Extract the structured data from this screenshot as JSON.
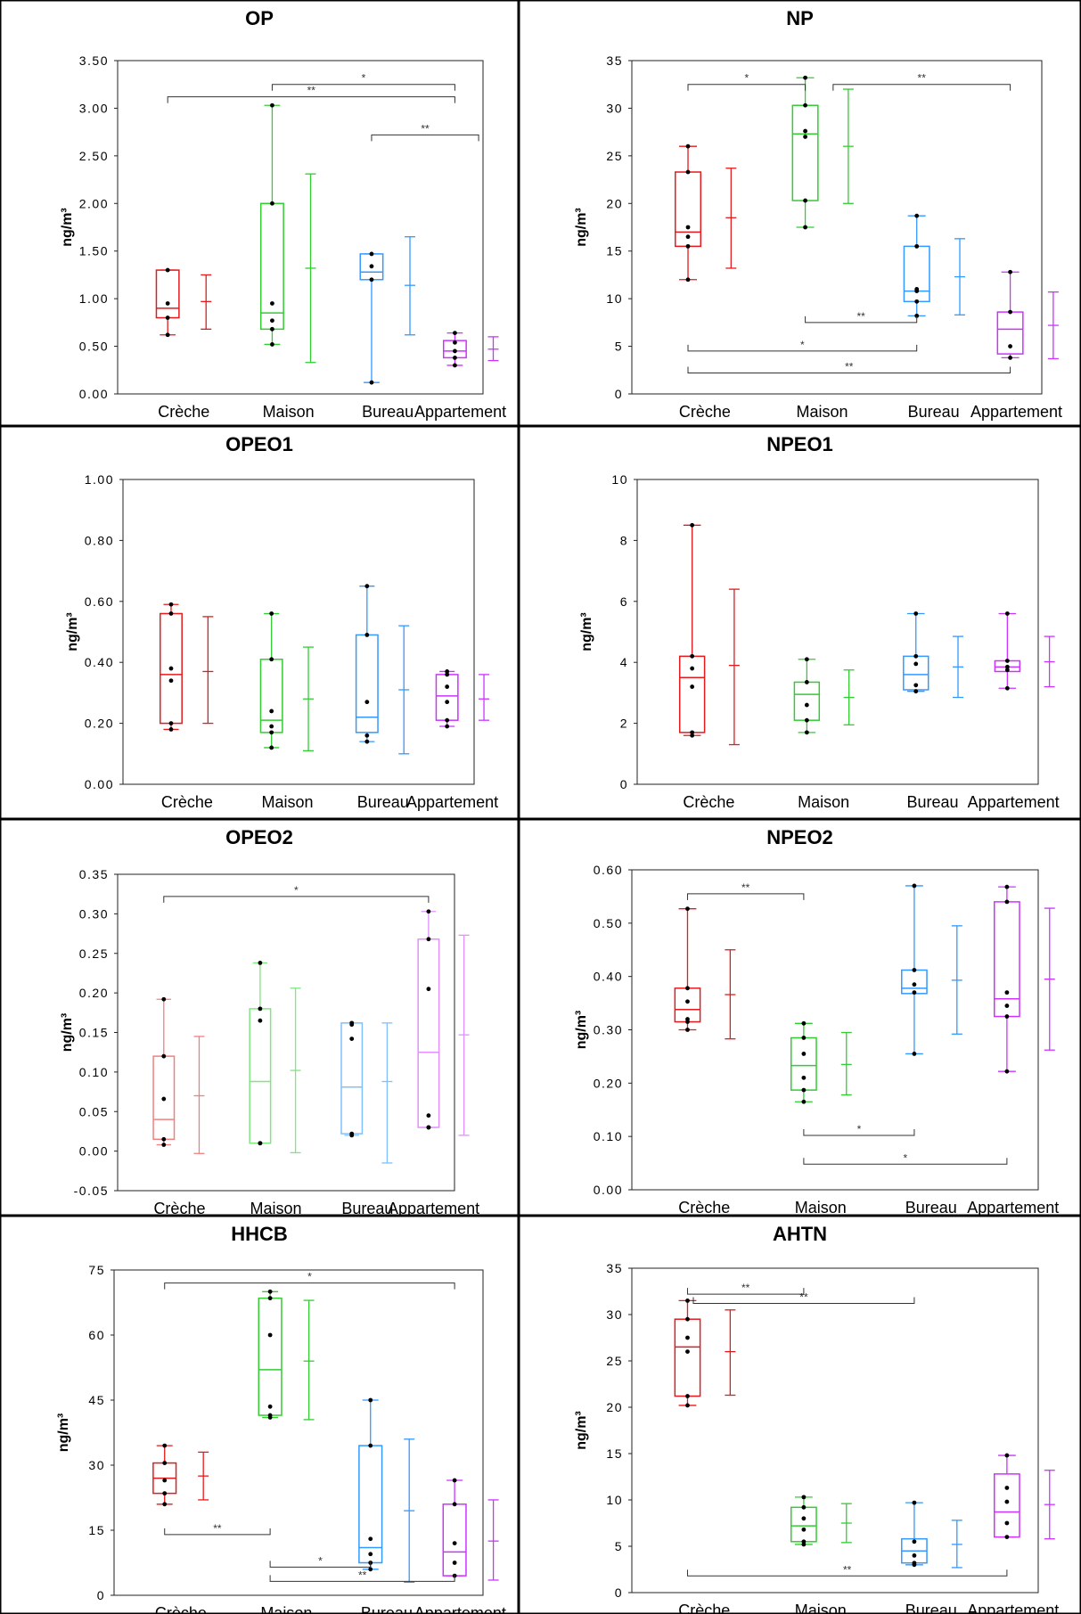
{
  "chart_data": [
    {
      "type": "box",
      "title": "OP",
      "ylabel": "ng/m³",
      "categories": [
        "Crèche",
        "Maison",
        "Bureau",
        "Appartement"
      ],
      "colors": [
        "#e41a1c",
        "#33cc33",
        "#3399ff",
        "#cc33ff"
      ],
      "ylim": [
        0,
        3.5
      ],
      "yticks": [
        0,
        0.5,
        1,
        1.5,
        2,
        2.5,
        3,
        3.5
      ],
      "ytick_labels": [
        "0.00",
        "0.50",
        "1.00",
        "1.50",
        "2.00",
        "2.50",
        "3.00",
        "3.50"
      ],
      "boxes": [
        {
          "min": 0.62,
          "q1": 0.8,
          "median": 0.9,
          "q3": 1.3,
          "max": 1.3,
          "points": [
            0.62,
            0.8,
            0.95,
            1.3
          ],
          "mean": 0.97,
          "mean_low": 0.68,
          "mean_high": 1.25
        },
        {
          "min": 0.52,
          "q1": 0.68,
          "median": 0.85,
          "q3": 2.0,
          "max": 3.03,
          "points": [
            0.52,
            0.68,
            0.77,
            0.95,
            2.0,
            3.03
          ],
          "mean": 1.32,
          "mean_low": 0.33,
          "mean_high": 2.31
        },
        {
          "min": 0.12,
          "q1": 1.2,
          "median": 1.28,
          "q3": 1.47,
          "max": 1.47,
          "points": [
            0.12,
            1.2,
            1.34,
            1.47
          ],
          "mean": 1.14,
          "mean_low": 0.62,
          "mean_high": 1.65
        },
        {
          "min": 0.3,
          "q1": 0.38,
          "median": 0.45,
          "q3": 0.56,
          "max": 0.64,
          "points": [
            0.3,
            0.38,
            0.45,
            0.54,
            0.64
          ],
          "mean": 0.47,
          "mean_low": 0.35,
          "mean_high": 0.6
        }
      ],
      "annotations": [
        {
          "from": 1,
          "to": 3,
          "y": 3.25,
          "label": "*",
          "drop": 1
        },
        {
          "from": 0,
          "to": 3,
          "y": 3.12,
          "label": "**",
          "drop": 1
        },
        {
          "from": 2,
          "to": 3.25,
          "y": 2.72,
          "label": "**",
          "drop": 1
        }
      ]
    },
    {
      "type": "box",
      "title": "NP",
      "ylabel": "ng/m³",
      "categories": [
        "Crèche",
        "Maison",
        "Bureau",
        "Appartement"
      ],
      "colors": [
        "#e41a1c",
        "#33cc33",
        "#3399ff",
        "#cc33ff"
      ],
      "ylim": [
        0,
        35
      ],
      "yticks": [
        0,
        5,
        10,
        15,
        20,
        25,
        30,
        35
      ],
      "ytick_labels": [
        "0",
        "5",
        "10",
        "15",
        "20",
        "25",
        "30",
        "35"
      ],
      "boxes": [
        {
          "min": 12,
          "q1": 15.5,
          "median": 17,
          "q3": 23.3,
          "max": 26,
          "points": [
            12,
            15.5,
            16.5,
            17.5,
            23.3,
            26
          ],
          "mean": 18.5,
          "mean_low": 13.2,
          "mean_high": 23.7
        },
        {
          "min": 17.5,
          "q1": 20.3,
          "median": 27.3,
          "q3": 30.3,
          "max": 33.2,
          "points": [
            17.5,
            20.3,
            27,
            27.6,
            30.3,
            33.2
          ],
          "mean": 26,
          "mean_low": 20,
          "mean_high": 32
        },
        {
          "min": 8.2,
          "q1": 9.7,
          "median": 10.8,
          "q3": 15.5,
          "max": 18.7,
          "points": [
            8.2,
            9.7,
            10.8,
            11,
            15.5,
            18.7
          ],
          "mean": 12.3,
          "mean_low": 8.3,
          "mean_high": 16.3
        },
        {
          "min": 3.8,
          "q1": 4.2,
          "median": 6.8,
          "q3": 8.6,
          "max": 12.8,
          "points": [
            3.8,
            5,
            8.6,
            12.8
          ],
          "mean": 7.2,
          "mean_low": 3.7,
          "mean_high": 10.7
        }
      ],
      "annotations": [
        {
          "from": 0,
          "to": 1,
          "y": 32.5,
          "label": "*",
          "drop": 1
        },
        {
          "from": 1.25,
          "to": 3,
          "y": 32.5,
          "label": "**",
          "drop": 1
        },
        {
          "from": 1,
          "to": 2,
          "y": 7.5,
          "label": "**",
          "drop": -1
        },
        {
          "from": 0,
          "to": 2,
          "y": 4.5,
          "label": "*",
          "drop": -1
        },
        {
          "from": 0,
          "to": 3,
          "y": 2.2,
          "label": "**",
          "drop": -1
        }
      ]
    },
    {
      "type": "box",
      "title": "OPEO1",
      "ylabel": "ng/m³",
      "categories": [
        "Crèche",
        "Maison",
        "Bureau",
        "Appartement"
      ],
      "colors": [
        "#e41a1c",
        "#33cc33",
        "#3399ff",
        "#cc33ff"
      ],
      "ylim": [
        0,
        1
      ],
      "yticks": [
        0,
        0.2,
        0.4,
        0.6,
        0.8,
        1
      ],
      "ytick_labels": [
        "0.00",
        "0.20",
        "0.40",
        "0.60",
        "0.80",
        "1.00"
      ],
      "boxes": [
        {
          "min": 0.18,
          "q1": 0.2,
          "median": 0.36,
          "q3": 0.56,
          "max": 0.59,
          "points": [
            0.18,
            0.2,
            0.34,
            0.38,
            0.56,
            0.59
          ],
          "mean": 0.37,
          "mean_low": 0.2,
          "mean_high": 0.55
        },
        {
          "min": 0.12,
          "q1": 0.17,
          "median": 0.21,
          "q3": 0.41,
          "max": 0.56,
          "points": [
            0.12,
            0.17,
            0.19,
            0.24,
            0.41,
            0.56
          ],
          "mean": 0.28,
          "mean_low": 0.11,
          "mean_high": 0.45
        },
        {
          "min": 0.14,
          "q1": 0.17,
          "median": 0.22,
          "q3": 0.49,
          "max": 0.65,
          "points": [
            0.14,
            0.16,
            0.27,
            0.49,
            0.65
          ],
          "mean": 0.31,
          "mean_low": 0.1,
          "mean_high": 0.52
        },
        {
          "min": 0.19,
          "q1": 0.21,
          "median": 0.29,
          "q3": 0.36,
          "max": 0.37,
          "points": [
            0.19,
            0.21,
            0.27,
            0.32,
            0.36,
            0.37
          ],
          "mean": 0.28,
          "mean_low": 0.21,
          "mean_high": 0.36
        }
      ],
      "annotations": []
    },
    {
      "type": "box",
      "title": "NPEO1",
      "ylabel": "ng/m³",
      "categories": [
        "Crèche",
        "Maison",
        "Bureau",
        "Appartement"
      ],
      "colors": [
        "#e41a1c",
        "#33cc33",
        "#3399ff",
        "#cc33ff"
      ],
      "ylim": [
        0,
        10
      ],
      "yticks": [
        0,
        2,
        4,
        6,
        8,
        10
      ],
      "ytick_labels": [
        "0",
        "2",
        "4",
        "6",
        "8",
        "10"
      ],
      "boxes": [
        {
          "min": 1.6,
          "q1": 1.7,
          "median": 3.5,
          "q3": 4.2,
          "max": 8.5,
          "points": [
            1.6,
            1.7,
            3.2,
            3.8,
            4.2,
            8.5
          ],
          "mean": 3.9,
          "mean_low": 1.3,
          "mean_high": 6.4
        },
        {
          "min": 1.7,
          "q1": 2.1,
          "median": 2.95,
          "q3": 3.35,
          "max": 4.1,
          "points": [
            1.7,
            2.1,
            2.6,
            3.35,
            4.1
          ],
          "mean": 2.85,
          "mean_low": 1.95,
          "mean_high": 3.75
        },
        {
          "min": 3.05,
          "q1": 3.1,
          "median": 3.6,
          "q3": 4.2,
          "max": 5.6,
          "points": [
            3.05,
            3.25,
            3.95,
            4.2,
            5.6
          ],
          "mean": 3.85,
          "mean_low": 2.85,
          "mean_high": 4.85
        },
        {
          "min": 3.15,
          "q1": 3.7,
          "median": 3.85,
          "q3": 4.05,
          "max": 5.6,
          "points": [
            3.15,
            3.75,
            3.85,
            4.05,
            5.6
          ],
          "mean": 4.02,
          "mean_low": 3.2,
          "mean_high": 4.85
        }
      ],
      "annotations": []
    },
    {
      "type": "box",
      "title": "OPEO2",
      "ylabel": "ng/m³",
      "categories": [
        "Crèche",
        "Maison",
        "Bureau",
        "Appartement"
      ],
      "colors": [
        "#f08080",
        "#7de87d",
        "#80c0ff",
        "#e090ff"
      ],
      "ylim": [
        -0.05,
        0.35
      ],
      "yticks": [
        -0.05,
        0,
        0.05,
        0.1,
        0.15,
        0.2,
        0.25,
        0.3,
        0.35
      ],
      "ytick_labels": [
        "-0.05",
        "0.00",
        "0.05",
        "0.10",
        "0.15",
        "0.20",
        "0.25",
        "0.30",
        "0.35"
      ],
      "boxes": [
        {
          "min": 0.008,
          "q1": 0.015,
          "median": 0.04,
          "q3": 0.12,
          "max": 0.192,
          "points": [
            0.008,
            0.015,
            0.066,
            0.12,
            0.192
          ],
          "mean": 0.07,
          "mean_low": -0.003,
          "mean_high": 0.145
        },
        {
          "min": 0.01,
          "q1": 0.01,
          "median": 0.088,
          "q3": 0.18,
          "max": 0.238,
          "points": [
            0.01,
            0.01,
            0.165,
            0.18,
            0.238
          ],
          "mean": 0.102,
          "mean_low": -0.002,
          "mean_high": 0.206
        },
        {
          "min": 0.02,
          "q1": 0.022,
          "median": 0.081,
          "q3": 0.162,
          "max": 0.162,
          "points": [
            0.02,
            0.022,
            0.142,
            0.16,
            0.162
          ],
          "mean": 0.088,
          "mean_low": -0.015,
          "mean_high": 0.162
        },
        {
          "min": 0.03,
          "q1": 0.03,
          "median": 0.125,
          "q3": 0.268,
          "max": 0.303,
          "points": [
            0.03,
            0.03,
            0.045,
            0.205,
            0.268,
            0.303
          ],
          "mean": 0.147,
          "mean_low": 0.02,
          "mean_high": 0.273
        }
      ],
      "annotations": [
        {
          "from": 0,
          "to": 3,
          "y": 0.322,
          "label": "*",
          "drop": 1
        }
      ]
    },
    {
      "type": "box",
      "title": "NPEO2",
      "ylabel": "ng/m³",
      "categories": [
        "Crèche",
        "Maison",
        "Bureau",
        "Appartement"
      ],
      "colors": [
        "#e41a1c",
        "#33cc33",
        "#3399ff",
        "#cc33ff"
      ],
      "ylim": [
        0,
        0.6
      ],
      "yticks": [
        0,
        0.1,
        0.2,
        0.3,
        0.4,
        0.5,
        0.6
      ],
      "ytick_labels": [
        "0.00",
        "0.10",
        "0.20",
        "0.30",
        "0.40",
        "0.50",
        "0.60"
      ],
      "boxes": [
        {
          "min": 0.3,
          "q1": 0.315,
          "median": 0.338,
          "q3": 0.378,
          "max": 0.527,
          "points": [
            0.3,
            0.315,
            0.32,
            0.353,
            0.378,
            0.527
          ],
          "mean": 0.366,
          "mean_low": 0.283,
          "mean_high": 0.45
        },
        {
          "min": 0.165,
          "q1": 0.187,
          "median": 0.233,
          "q3": 0.285,
          "max": 0.312,
          "points": [
            0.165,
            0.187,
            0.21,
            0.255,
            0.285,
            0.312
          ],
          "mean": 0.235,
          "mean_low": 0.178,
          "mean_high": 0.295
        },
        {
          "min": 0.255,
          "q1": 0.368,
          "median": 0.378,
          "q3": 0.412,
          "max": 0.57,
          "points": [
            0.255,
            0.37,
            0.385,
            0.412,
            0.57
          ],
          "mean": 0.393,
          "mean_low": 0.292,
          "mean_high": 0.495
        },
        {
          "min": 0.222,
          "q1": 0.325,
          "median": 0.358,
          "q3": 0.54,
          "max": 0.568,
          "points": [
            0.222,
            0.325,
            0.345,
            0.37,
            0.54,
            0.568
          ],
          "mean": 0.395,
          "mean_low": 0.262,
          "mean_high": 0.528
        }
      ],
      "annotations": [
        {
          "from": 0,
          "to": 1,
          "y": 0.555,
          "label": "**",
          "drop": 1
        },
        {
          "from": 1,
          "to": 2,
          "y": 0.102,
          "label": "*",
          "drop": -1
        },
        {
          "from": 1,
          "to": 3,
          "y": 0.048,
          "label": "*",
          "drop": -1
        }
      ]
    },
    {
      "type": "box",
      "title": "HHCB",
      "ylabel": "ng/m³",
      "categories": [
        "Crèche",
        "Maison",
        "Bureau",
        "Appartement"
      ],
      "colors": [
        "#e41a1c",
        "#33cc33",
        "#3399ff",
        "#cc33ff"
      ],
      "ylim": [
        0,
        75
      ],
      "yticks": [
        0,
        15,
        30,
        45,
        60,
        75
      ],
      "ytick_labels": [
        "0",
        "15",
        "30",
        "45",
        "60",
        "75"
      ],
      "boxes": [
        {
          "min": 21,
          "q1": 23.5,
          "median": 27,
          "q3": 30.5,
          "max": 34.5,
          "points": [
            21,
            23.5,
            26.5,
            30.5,
            34.5
          ],
          "mean": 27.5,
          "mean_low": 22,
          "mean_high": 33
        },
        {
          "min": 41,
          "q1": 41.5,
          "median": 52,
          "q3": 68.5,
          "max": 70,
          "points": [
            41,
            41.5,
            43.5,
            60,
            68.5,
            70
          ],
          "mean": 54,
          "mean_low": 40.5,
          "mean_high": 68
        },
        {
          "min": 6,
          "q1": 7.5,
          "median": 11,
          "q3": 34.5,
          "max": 45,
          "points": [
            6,
            7.5,
            9.5,
            13,
            34.5,
            45
          ],
          "mean": 19.5,
          "mean_low": 3,
          "mean_high": 36
        },
        {
          "min": 4.5,
          "q1": 4.5,
          "median": 10,
          "q3": 21,
          "max": 26.5,
          "points": [
            4.5,
            7.5,
            12,
            21,
            26.5
          ],
          "mean": 12.5,
          "mean_low": 3.5,
          "mean_high": 22
        }
      ],
      "annotations": [
        {
          "from": 0,
          "to": 3,
          "y": 72,
          "label": "*",
          "drop": 1
        },
        {
          "from": 0,
          "to": 1,
          "y": 14,
          "label": "**",
          "drop": -1
        },
        {
          "from": 1,
          "to": 2,
          "y": 6.5,
          "label": "*",
          "drop": -1
        },
        {
          "from": 1,
          "to": 3,
          "y": 3.2,
          "label": "**",
          "drop": -1
        }
      ]
    },
    {
      "type": "box",
      "title": "AHTN",
      "ylabel": "ng/m³",
      "categories": [
        "Crèche",
        "Maison",
        "Bureau",
        "Appartement"
      ],
      "colors": [
        "#e41a1c",
        "#33cc33",
        "#3399ff",
        "#cc33ff"
      ],
      "ylim": [
        0,
        35
      ],
      "yticks": [
        0,
        5,
        10,
        15,
        20,
        25,
        30,
        35
      ],
      "ytick_labels": [
        "0",
        "5",
        "10",
        "15",
        "20",
        "25",
        "30",
        "35"
      ],
      "boxes": [
        {
          "min": 20.2,
          "q1": 21.2,
          "median": 26.5,
          "q3": 29.5,
          "max": 31.5,
          "points": [
            20.2,
            21.2,
            26,
            27.5,
            29.5,
            31.5
          ],
          "mean": 26,
          "mean_low": 21.3,
          "mean_high": 30.5
        },
        {
          "min": 5.2,
          "q1": 5.5,
          "median": 7.2,
          "q3": 9.2,
          "max": 10.3,
          "points": [
            5.2,
            5.5,
            6.8,
            8,
            9.2,
            10.3
          ],
          "mean": 7.5,
          "mean_low": 5.4,
          "mean_high": 9.6
        },
        {
          "min": 3,
          "q1": 3.2,
          "median": 4.5,
          "q3": 5.8,
          "max": 9.7,
          "points": [
            3,
            3.2,
            4,
            5.5,
            9.7
          ],
          "mean": 5.2,
          "mean_low": 2.7,
          "mean_high": 7.8
        },
        {
          "min": 6,
          "q1": 6,
          "median": 8.7,
          "q3": 12.8,
          "max": 14.8,
          "points": [
            6,
            7.5,
            9.8,
            11.3,
            14.8
          ],
          "mean": 9.5,
          "mean_low": 5.8,
          "mean_high": 13.2
        }
      ],
      "annotations": [
        {
          "from": 0,
          "to": 1,
          "y": 32.2,
          "label": "**",
          "drop": -1
        },
        {
          "from": 0.05,
          "to": 2,
          "y": 31.2,
          "label": "**",
          "drop": -1
        },
        {
          "from": 0,
          "to": 3,
          "y": 1.8,
          "label": "**",
          "drop": -1
        }
      ]
    }
  ]
}
